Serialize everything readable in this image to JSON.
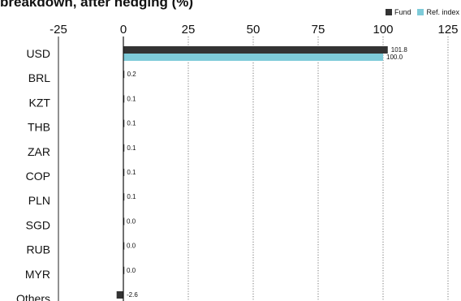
{
  "title": "breakdown, after hedging (%)",
  "colors": {
    "fund": "#333333",
    "ref_index": "#7ecbd9"
  },
  "chart_data": {
    "type": "bar",
    "orientation": "horizontal",
    "title": "breakdown, after hedging (%)",
    "xlabel": "",
    "ylabel": "",
    "xlim": [
      -25,
      125
    ],
    "xticks": [
      -25,
      0,
      25,
      50,
      75,
      100,
      125
    ],
    "grid": "vertical dotted",
    "legend_position": "top-right",
    "categories": [
      "USD",
      "BRL",
      "KZT",
      "THB",
      "ZAR",
      "COP",
      "PLN",
      "SGD",
      "RUB",
      "MYR",
      "Others"
    ],
    "series": [
      {
        "name": "Fund",
        "color": "#333333",
        "values": [
          101.8,
          0.2,
          0.1,
          0.1,
          0.1,
          0.1,
          0.1,
          0.0,
          0.0,
          0.0,
          -2.6
        ],
        "labels": [
          "101.8",
          "0.2",
          "0.1",
          "0.1",
          "0.1",
          "0.1",
          "0.1",
          "0.0",
          "0.0",
          "0.0",
          "-2.6"
        ]
      },
      {
        "name": "Ref. index",
        "color": "#7ecbd9",
        "values": [
          100.0,
          null,
          null,
          null,
          null,
          null,
          null,
          null,
          null,
          null,
          null
        ],
        "labels": [
          "100.0",
          "",
          "",
          "",
          "",
          "",
          "",
          "",
          "",
          "",
          ""
        ]
      }
    ]
  }
}
